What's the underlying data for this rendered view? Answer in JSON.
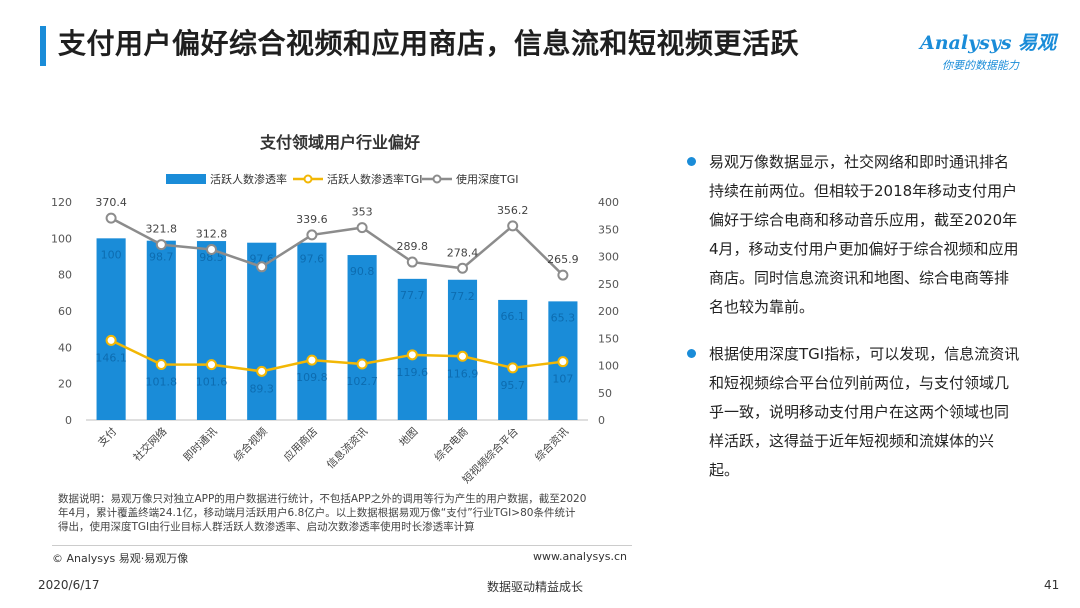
{
  "page": {
    "title": "支付用户偏好综合视频和应用商店，信息流和短视频更活跃",
    "logo_brand": "Analysys 易观",
    "logo_slogan": "你要的数据能力",
    "notes": [
      "数据说明：易观万像只对独立APP的用户数据进行统计，不包括APP之外的调用等行为产生的用户数据，截至2020",
      "年4月，累计覆盖终端24.1亿，移动端月活跃用户6.8亿户。以上数据根据易观万像“支付”行业TGI>80条件统计",
      "得出，使用深度TGI由行业目标人群活跃人数渗透率、启动次数渗透率使用时长渗透率计算"
    ],
    "copyright": "© Analysys 易观·易观万像",
    "website": "www.analysys.cn",
    "footer_date": "2020/6/17",
    "footer_slogan": "数据驱动精益成长",
    "page_number": "41",
    "bullets": [
      "易观万像数据显示，社交网络和即时通讯排名持续在前两位。但相较于2018年移动支付用户偏好于综合电商和移动音乐应用，截至2020年4月，移动支付用户更加偏好于综合视频和应用商店。同时信息流资讯和地图、综合电商等排名也较为靠前。",
      "根据使用深度TGI指标，可以发现，信息流资讯和短视频综合平台位列前两位，与支付领域几乎一致，说明移动支付用户在这两个领域也同样活跃，这得益于近年短视频和流媒体的兴起。"
    ],
    "colors": {
      "bar": "#1a8cd8",
      "tgi_line": "#f2b705",
      "depth_line": "#8c8c8c",
      "accent": "#1a8cd8"
    }
  },
  "chart_data": {
    "type": "bar",
    "title": "支付领域用户行业偏好",
    "categories": [
      "支付",
      "社交网络",
      "即时通讯",
      "综合视频",
      "应用商店",
      "信息流资讯",
      "地图",
      "综合电商",
      "短视频综合平台",
      "综合资讯"
    ],
    "series": [
      {
        "name": "活跃人数渗透率",
        "type": "bar",
        "axis": "left",
        "values": [
          100,
          98.7,
          98.5,
          97.6,
          97.6,
          90.8,
          77.7,
          77.2,
          66.1,
          65.3
        ],
        "labels": [
          "100",
          "98.7",
          "98.5",
          "97.6",
          "97.6",
          "90.8",
          "77.7",
          "77.2",
          "66.1",
          "65.3"
        ]
      },
      {
        "name": "活跃人数渗透率TGI",
        "type": "line",
        "axis": "right",
        "values": [
          146.1,
          101.8,
          101.6,
          89.3,
          109.8,
          102.7,
          119.6,
          116.9,
          95.7,
          107
        ],
        "labels": [
          "146.1",
          "101.8",
          "101.6",
          "89.3",
          "109.8",
          "102.7",
          "119.6",
          "116.9",
          "95.7",
          "107"
        ]
      },
      {
        "name": "使用深度TGI",
        "type": "line",
        "axis": "right",
        "values": [
          370.4,
          321.8,
          312.8,
          281.1,
          339.6,
          353,
          289.8,
          278.4,
          356.2,
          265.9
        ],
        "labels": [
          "370.4",
          "321.8",
          "312.8",
          "",
          "339.6",
          "353",
          "289.8",
          "278.4",
          "356.2",
          "265.9"
        ]
      }
    ],
    "ylim_left": [
      0,
      120
    ],
    "ylim_right": [
      0,
      400
    ],
    "yticks_left": [
      0,
      20,
      40,
      60,
      80,
      100,
      120
    ],
    "yticks_right": [
      0,
      50,
      100,
      150,
      200,
      250,
      300,
      350,
      400
    ],
    "legend": "top",
    "grid": false
  }
}
